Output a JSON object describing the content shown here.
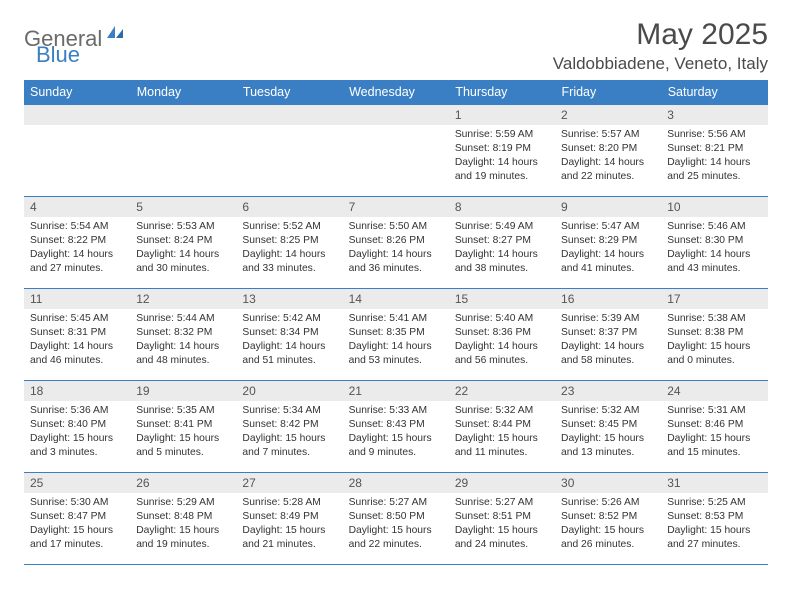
{
  "logo": {
    "text1": "General",
    "text2": "Blue"
  },
  "title": "May 2025",
  "location": "Valdobbiadene, Veneto, Italy",
  "colors": {
    "header_bg": "#3a7fc4",
    "header_text": "#ffffff",
    "daynum_bg": "#ebebeb",
    "border": "#3a7fc4",
    "body_text": "#333333",
    "logo_gray": "#6b6b6b",
    "logo_blue": "#3a7fc4"
  },
  "weekdays": [
    "Sunday",
    "Monday",
    "Tuesday",
    "Wednesday",
    "Thursday",
    "Friday",
    "Saturday"
  ],
  "weeks": [
    [
      null,
      null,
      null,
      null,
      {
        "n": "1",
        "sr": "5:59 AM",
        "ss": "8:19 PM",
        "dlh": "14",
        "dlm": "19"
      },
      {
        "n": "2",
        "sr": "5:57 AM",
        "ss": "8:20 PM",
        "dlh": "14",
        "dlm": "22"
      },
      {
        "n": "3",
        "sr": "5:56 AM",
        "ss": "8:21 PM",
        "dlh": "14",
        "dlm": "25"
      }
    ],
    [
      {
        "n": "4",
        "sr": "5:54 AM",
        "ss": "8:22 PM",
        "dlh": "14",
        "dlm": "27"
      },
      {
        "n": "5",
        "sr": "5:53 AM",
        "ss": "8:24 PM",
        "dlh": "14",
        "dlm": "30"
      },
      {
        "n": "6",
        "sr": "5:52 AM",
        "ss": "8:25 PM",
        "dlh": "14",
        "dlm": "33"
      },
      {
        "n": "7",
        "sr": "5:50 AM",
        "ss": "8:26 PM",
        "dlh": "14",
        "dlm": "36"
      },
      {
        "n": "8",
        "sr": "5:49 AM",
        "ss": "8:27 PM",
        "dlh": "14",
        "dlm": "38"
      },
      {
        "n": "9",
        "sr": "5:47 AM",
        "ss": "8:29 PM",
        "dlh": "14",
        "dlm": "41"
      },
      {
        "n": "10",
        "sr": "5:46 AM",
        "ss": "8:30 PM",
        "dlh": "14",
        "dlm": "43"
      }
    ],
    [
      {
        "n": "11",
        "sr": "5:45 AM",
        "ss": "8:31 PM",
        "dlh": "14",
        "dlm": "46"
      },
      {
        "n": "12",
        "sr": "5:44 AM",
        "ss": "8:32 PM",
        "dlh": "14",
        "dlm": "48"
      },
      {
        "n": "13",
        "sr": "5:42 AM",
        "ss": "8:34 PM",
        "dlh": "14",
        "dlm": "51"
      },
      {
        "n": "14",
        "sr": "5:41 AM",
        "ss": "8:35 PM",
        "dlh": "14",
        "dlm": "53"
      },
      {
        "n": "15",
        "sr": "5:40 AM",
        "ss": "8:36 PM",
        "dlh": "14",
        "dlm": "56"
      },
      {
        "n": "16",
        "sr": "5:39 AM",
        "ss": "8:37 PM",
        "dlh": "14",
        "dlm": "58"
      },
      {
        "n": "17",
        "sr": "5:38 AM",
        "ss": "8:38 PM",
        "dlh": "15",
        "dlm": "0"
      }
    ],
    [
      {
        "n": "18",
        "sr": "5:36 AM",
        "ss": "8:40 PM",
        "dlh": "15",
        "dlm": "3"
      },
      {
        "n": "19",
        "sr": "5:35 AM",
        "ss": "8:41 PM",
        "dlh": "15",
        "dlm": "5"
      },
      {
        "n": "20",
        "sr": "5:34 AM",
        "ss": "8:42 PM",
        "dlh": "15",
        "dlm": "7"
      },
      {
        "n": "21",
        "sr": "5:33 AM",
        "ss": "8:43 PM",
        "dlh": "15",
        "dlm": "9"
      },
      {
        "n": "22",
        "sr": "5:32 AM",
        "ss": "8:44 PM",
        "dlh": "15",
        "dlm": "11"
      },
      {
        "n": "23",
        "sr": "5:32 AM",
        "ss": "8:45 PM",
        "dlh": "15",
        "dlm": "13"
      },
      {
        "n": "24",
        "sr": "5:31 AM",
        "ss": "8:46 PM",
        "dlh": "15",
        "dlm": "15"
      }
    ],
    [
      {
        "n": "25",
        "sr": "5:30 AM",
        "ss": "8:47 PM",
        "dlh": "15",
        "dlm": "17"
      },
      {
        "n": "26",
        "sr": "5:29 AM",
        "ss": "8:48 PM",
        "dlh": "15",
        "dlm": "19"
      },
      {
        "n": "27",
        "sr": "5:28 AM",
        "ss": "8:49 PM",
        "dlh": "15",
        "dlm": "21"
      },
      {
        "n": "28",
        "sr": "5:27 AM",
        "ss": "8:50 PM",
        "dlh": "15",
        "dlm": "22"
      },
      {
        "n": "29",
        "sr": "5:27 AM",
        "ss": "8:51 PM",
        "dlh": "15",
        "dlm": "24"
      },
      {
        "n": "30",
        "sr": "5:26 AM",
        "ss": "8:52 PM",
        "dlh": "15",
        "dlm": "26"
      },
      {
        "n": "31",
        "sr": "5:25 AM",
        "ss": "8:53 PM",
        "dlh": "15",
        "dlm": "27"
      }
    ]
  ]
}
